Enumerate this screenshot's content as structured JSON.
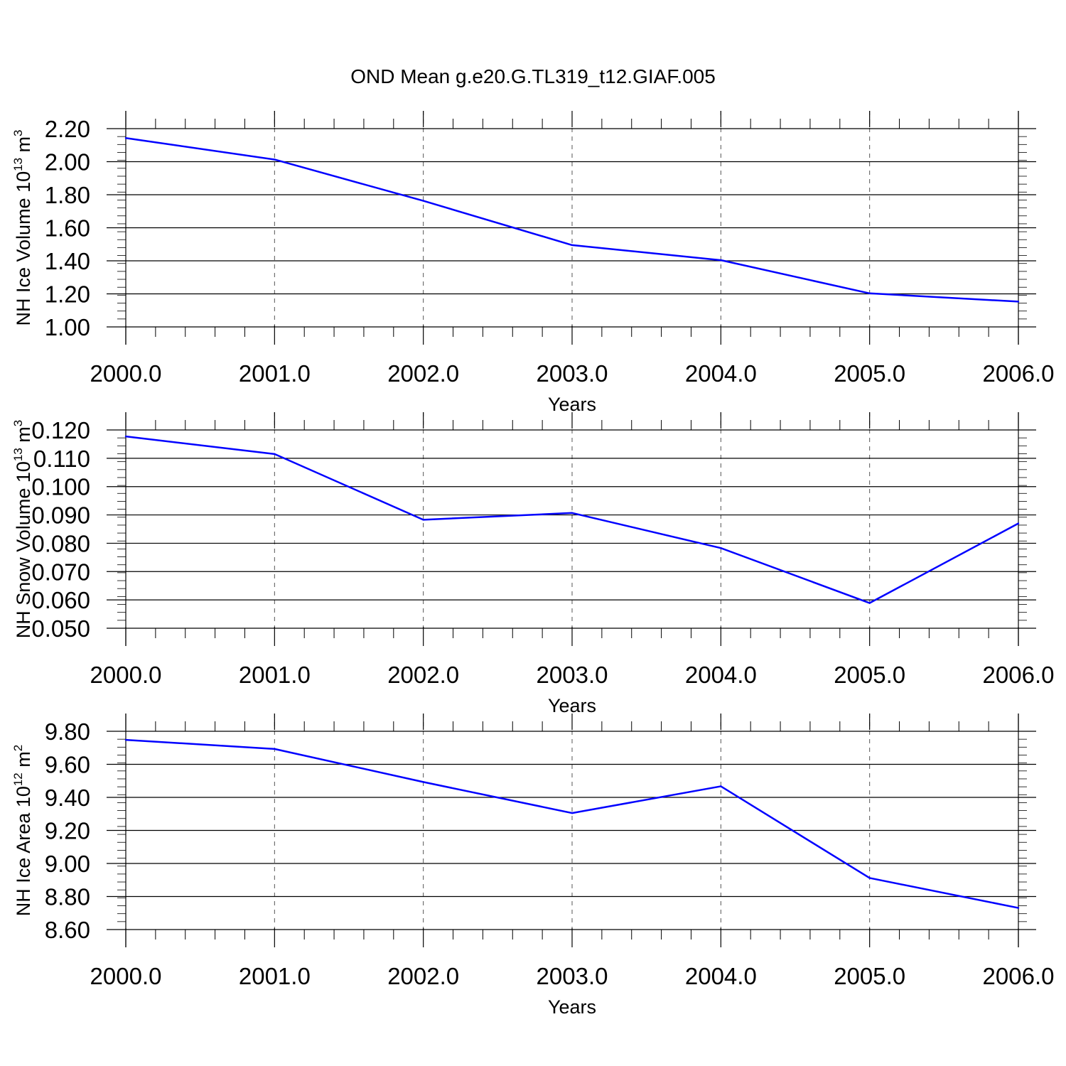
{
  "page_title": "OND Mean g.e20.G.TL319_t12.GIAF.005",
  "colors": {
    "series": "#0000ff",
    "axes": "#000000",
    "grid": "#555555"
  },
  "chart_data": [
    {
      "type": "line",
      "title": "OND Mean g.e20.G.TL319_t12.GIAF.005",
      "xlabel": "Years",
      "ylabel": {
        "text": "NH Ice Volume 10",
        "exponent": "13",
        "unit": " m",
        "unit_exponent": "3"
      },
      "x": [
        2000,
        2001,
        2002,
        2003,
        2004,
        2005,
        2006
      ],
      "xticks": [
        "2000.0",
        "2001.0",
        "2002.0",
        "2003.0",
        "2004.0",
        "2005.0",
        "2006.0"
      ],
      "xlim": [
        2000,
        2006
      ],
      "ylim": [
        1.0,
        2.2
      ],
      "yticks": [
        "1.00",
        "1.20",
        "1.40",
        "1.60",
        "1.80",
        "2.00",
        "2.20"
      ],
      "ytick_values": [
        1.0,
        1.2,
        1.4,
        1.6,
        1.8,
        2.0,
        2.2
      ],
      "series": [
        {
          "name": "NH Ice Volume",
          "values": [
            2.143,
            2.013,
            1.763,
            1.495,
            1.404,
            1.203,
            1.153
          ]
        }
      ],
      "grid": "vertical dashed"
    },
    {
      "type": "line",
      "title": "",
      "xlabel": "Years",
      "ylabel": {
        "text": "NH Snow Volume 10",
        "exponent": "13",
        "unit": " m",
        "unit_exponent": "3"
      },
      "x": [
        2000,
        2001,
        2002,
        2003,
        2004,
        2005,
        2006
      ],
      "xticks": [
        "2000.0",
        "2001.0",
        "2002.0",
        "2003.0",
        "2004.0",
        "2005.0",
        "2006.0"
      ],
      "xlim": [
        2000,
        2006
      ],
      "ylim": [
        0.05,
        0.12
      ],
      "yticks": [
        "0.050",
        "0.060",
        "0.070",
        "0.080",
        "0.090",
        "0.100",
        "0.110",
        "0.120"
      ],
      "ytick_values": [
        0.05,
        0.06,
        0.07,
        0.08,
        0.09,
        0.1,
        0.11,
        0.12
      ],
      "series": [
        {
          "name": "NH Snow Volume",
          "values": [
            0.1177,
            0.1115,
            0.0883,
            0.0907,
            0.0783,
            0.0589,
            0.087
          ]
        }
      ],
      "grid": "vertical dashed"
    },
    {
      "type": "line",
      "title": "",
      "xlabel": "Years",
      "ylabel": {
        "text": "NH Ice Area 10",
        "exponent": "12",
        "unit": " m",
        "unit_exponent": "2"
      },
      "x": [
        2000,
        2001,
        2002,
        2003,
        2004,
        2005,
        2006
      ],
      "xticks": [
        "2000.0",
        "2001.0",
        "2002.0",
        "2003.0",
        "2004.0",
        "2005.0",
        "2006.0"
      ],
      "xlim": [
        2000,
        2006
      ],
      "ylim": [
        8.6,
        9.8
      ],
      "yticks": [
        "8.60",
        "8.80",
        "9.00",
        "9.20",
        "9.40",
        "9.60",
        "9.80"
      ],
      "ytick_values": [
        8.6,
        8.8,
        9.0,
        9.2,
        9.4,
        9.6,
        9.8
      ],
      "series": [
        {
          "name": "NH Ice Area",
          "values": [
            9.748,
            9.693,
            9.493,
            9.305,
            9.467,
            8.912,
            8.731
          ]
        }
      ],
      "grid": "vertical dashed"
    }
  ]
}
